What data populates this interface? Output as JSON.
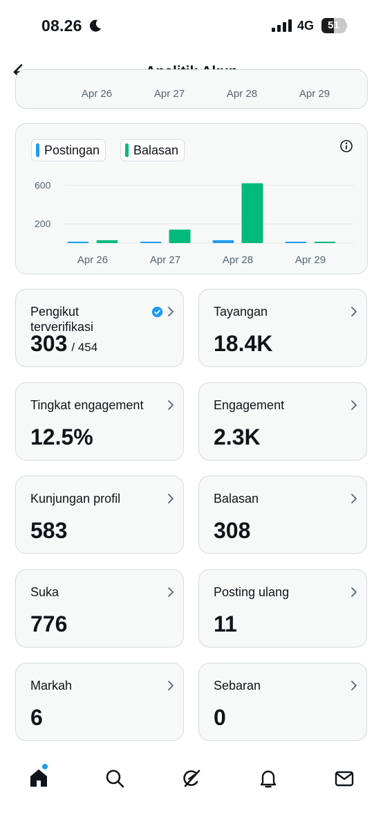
{
  "status_bar": {
    "time": "08.26",
    "network": "4G",
    "battery": "51",
    "battery_level": 0.51,
    "icons": [
      "moon-icon",
      "signal-icon",
      "battery-icon"
    ]
  },
  "header": {
    "title": "Analitik Akun",
    "back_icon": "back-arrow-icon"
  },
  "previous_chart_labels": [
    "Apr 26",
    "Apr 27",
    "Apr 28",
    "Apr 29"
  ],
  "chart": {
    "legend": [
      {
        "label": "Postingan",
        "color": "#1d9bf0"
      },
      {
        "label": "Balasan",
        "color": "#00ba7c"
      }
    ],
    "info_icon": "info-icon"
  },
  "chart_data": {
    "type": "bar",
    "categories": [
      "Apr 26",
      "Apr 27",
      "Apr 28",
      "Apr 29"
    ],
    "series": [
      {
        "name": "Postingan",
        "color": "#1d9bf0",
        "values": [
          2,
          2,
          30,
          0
        ]
      },
      {
        "name": "Balasan",
        "color": "#00ba7c",
        "values": [
          30,
          140,
          620,
          8
        ]
      }
    ],
    "yticks": [
      200,
      600
    ],
    "ylim": [
      0,
      660
    ],
    "grid": true,
    "legend_position": "top-left"
  },
  "metrics": [
    {
      "label": "Pengikut terverifikasi",
      "value": "303",
      "sub": "/ 454",
      "verified": true
    },
    {
      "label": "Tayangan",
      "value": "18.4K"
    },
    {
      "label": "Tingkat engagement",
      "value": "12.5%"
    },
    {
      "label": "Engagement",
      "value": "2.3K"
    },
    {
      "label": "Kunjungan profil",
      "value": "583"
    },
    {
      "label": "Balasan",
      "value": "308"
    },
    {
      "label": "Suka",
      "value": "776"
    },
    {
      "label": "Posting ulang",
      "value": "11"
    },
    {
      "label": "Markah",
      "value": "6"
    },
    {
      "label": "Sebaran",
      "value": "0"
    }
  ],
  "tab_bar": {
    "tabs": [
      "home-icon",
      "search-icon",
      "grok-icon",
      "notifications-icon",
      "messages-icon"
    ],
    "accent": "#1d9bf0"
  }
}
